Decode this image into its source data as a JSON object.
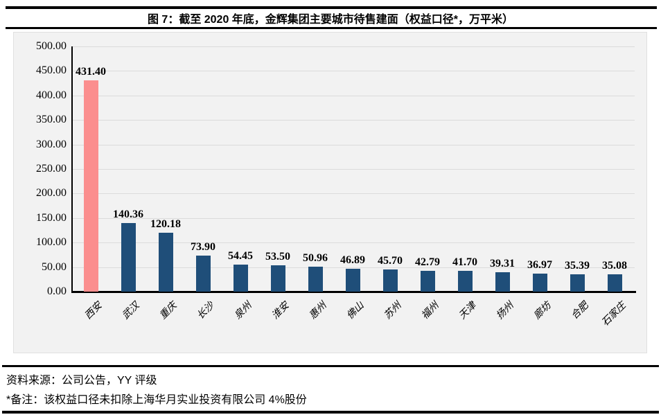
{
  "title": "图 7：截至 2020 年底，金辉集团主要城市待售建面（权益口径*，万平米）",
  "footer": {
    "source": "资料来源：公司公告，YY 评级",
    "note": "*备注：该权益口径未扣除上海华月实业投资有限公司 4%股份"
  },
  "colors": {
    "highlight_bar": "#FB8E8E",
    "bar": "#1F4E79",
    "plot_bg": "#F2F2F2",
    "gridline": "#DBDBDB",
    "axis": "#000000"
  },
  "chart_data": {
    "type": "bar",
    "title": "图 7：截至 2020 年底，金辉集团主要城市待售建面（权益口径*，万平米）",
    "categories": [
      "西安",
      "武汉",
      "重庆",
      "长沙",
      "泉州",
      "淮安",
      "惠州",
      "佛山",
      "苏州",
      "福州",
      "天津",
      "扬州",
      "廊坊",
      "合肥",
      "石家庄"
    ],
    "values": [
      431.4,
      140.36,
      120.18,
      73.9,
      54.45,
      53.5,
      50.96,
      46.89,
      45.7,
      42.79,
      41.7,
      39.31,
      36.97,
      35.39,
      35.08
    ],
    "value_labels": [
      "431.40",
      "140.36",
      "120.18",
      "73.90",
      "54.45",
      "53.50",
      "50.96",
      "46.89",
      "45.70",
      "42.79",
      "41.70",
      "39.31",
      "36.97",
      "35.39",
      "35.08"
    ],
    "xlabel": "",
    "ylabel": "",
    "ylim": [
      0,
      500
    ],
    "ytick_step": 50,
    "ytick_labels": [
      "0.00",
      "50.00",
      "100.00",
      "150.00",
      "200.00",
      "250.00",
      "300.00",
      "350.00",
      "400.00",
      "450.00",
      "500.00"
    ],
    "grid": true,
    "legend": false,
    "highlight_index": 0,
    "highlight_category": "西安",
    "unit": "万平米"
  }
}
